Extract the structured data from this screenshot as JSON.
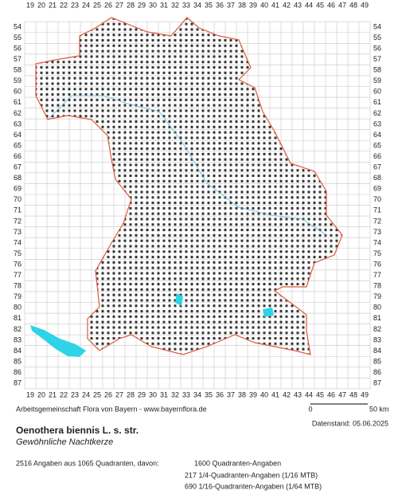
{
  "map": {
    "columns": [
      19,
      20,
      21,
      22,
      23,
      24,
      25,
      26,
      27,
      28,
      29,
      30,
      31,
      32,
      33,
      34,
      35,
      36,
      37,
      38,
      39,
      40,
      41,
      42,
      43,
      44,
      45,
      46,
      47,
      48,
      49
    ],
    "rows": [
      54,
      55,
      56,
      57,
      58,
      59,
      60,
      61,
      62,
      63,
      64,
      65,
      66,
      67,
      68,
      69,
      70,
      71,
      72,
      73,
      74,
      75,
      76,
      77,
      78,
      79,
      80,
      81,
      82,
      83,
      84,
      85,
      86,
      87
    ],
    "credit": "Arbeitsgemeinschaft Flora von Bayern - www.bayernflora.de",
    "scale_start": "0",
    "scale_end": "50 km",
    "date": "Datenstand: 05.06.2025",
    "title": "Oenothera biennis L. s. str.",
    "subtitle": "Gewöhnliche Nachtkerze",
    "summary": "2516 Angaben aus 1065 Quadranten, davon:",
    "details": [
      "1600 Quadranten-Angaben",
      "217 1/4-Quadranten-Angaben (1/16 MTB)",
      "690 1/16-Quadranten-Angaben (1/64 MTB)"
    ]
  }
}
